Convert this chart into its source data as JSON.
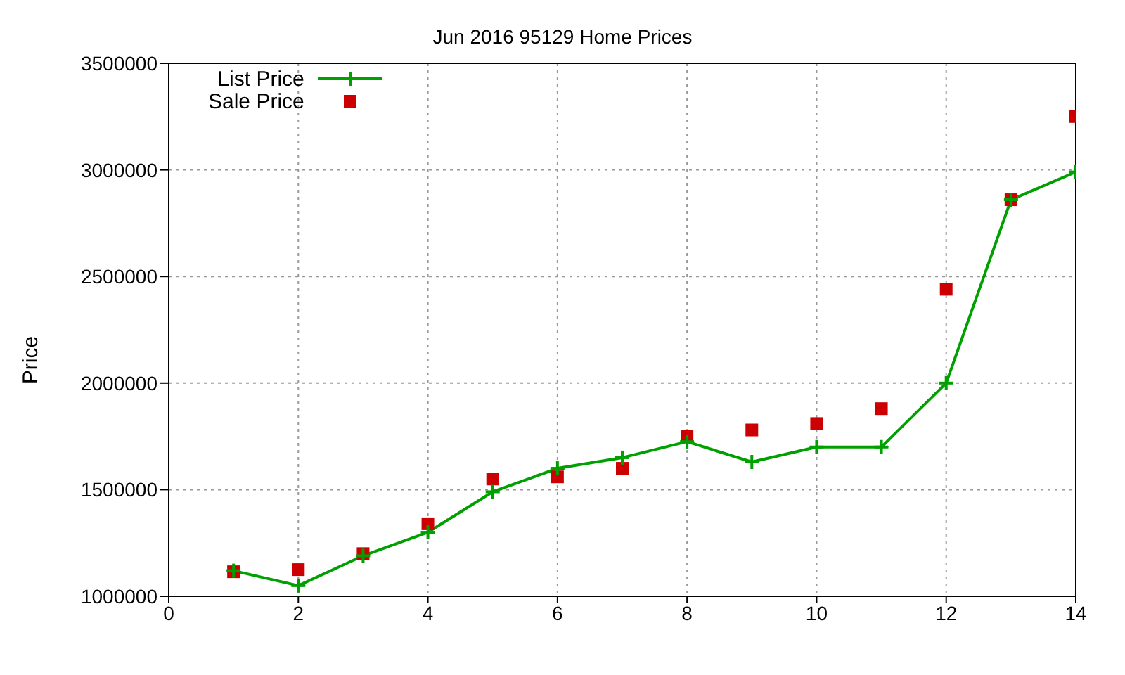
{
  "chart_data": {
    "type": "line",
    "title": "Jun 2016 95129 Home Prices",
    "ylabel": "Price",
    "x": [
      1,
      2,
      3,
      4,
      5,
      6,
      7,
      8,
      9,
      10,
      11,
      12,
      13,
      14
    ],
    "series": [
      {
        "name": "List Price",
        "color": "#00a000",
        "marker": "cross",
        "values": [
          1120000,
          1050000,
          1190000,
          1300000,
          1490000,
          1600000,
          1650000,
          1725000,
          1630000,
          1700000,
          1700000,
          2000000,
          2860000,
          2990000
        ]
      },
      {
        "name": "Sale Price",
        "type": "scatter",
        "color": "#cc0000",
        "marker": "square",
        "values": [
          1115000,
          1125000,
          1200000,
          1340000,
          1550000,
          1560000,
          1600000,
          1750000,
          1780000,
          1810000,
          1880000,
          2440000,
          2860000,
          3250000
        ]
      }
    ],
    "xlim": [
      0,
      14
    ],
    "xticks": [
      0,
      2,
      4,
      6,
      8,
      10,
      12,
      14
    ],
    "ylim": [
      1000000,
      3500000
    ],
    "yticks": [
      1000000,
      1500000,
      2000000,
      2500000,
      3000000,
      3500000
    ],
    "grid": true,
    "legend": "top left"
  }
}
